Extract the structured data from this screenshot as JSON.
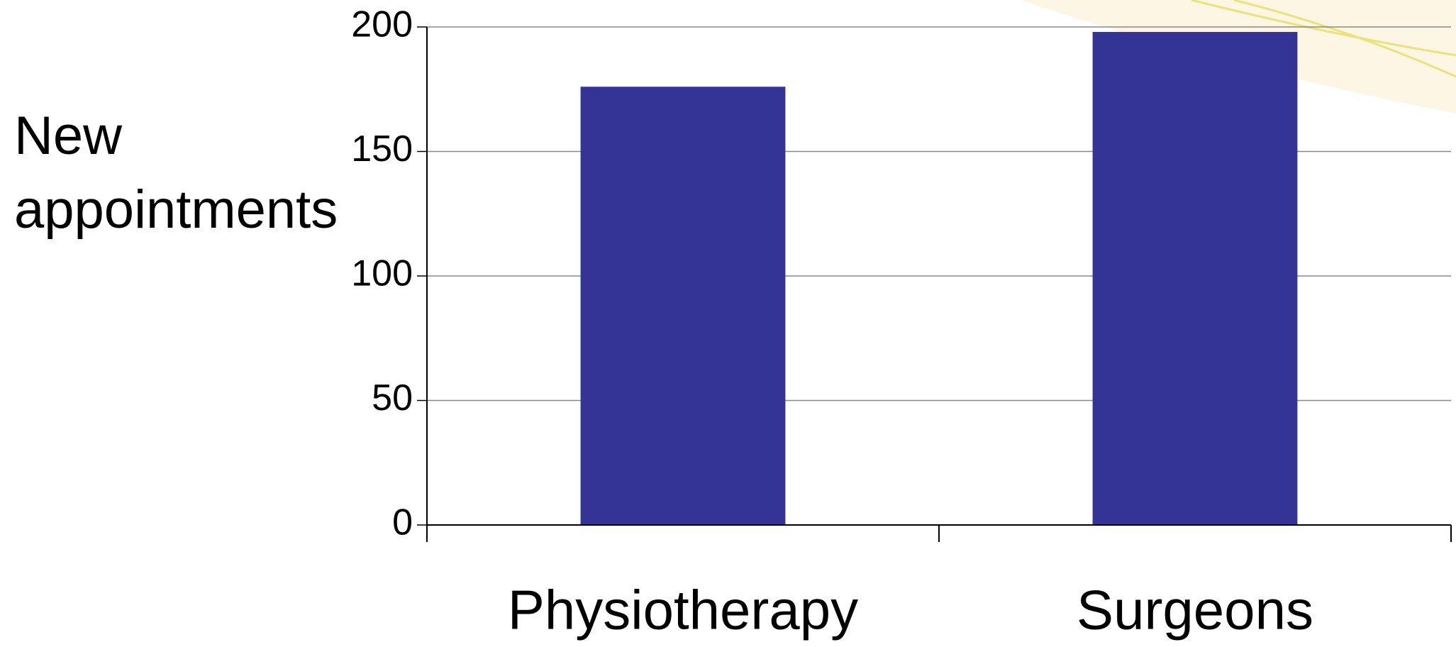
{
  "chart_data": {
    "type": "bar",
    "y_label": "New appointments",
    "categories": [
      "Physiotherapy",
      "Surgeons"
    ],
    "values": [
      176,
      198
    ],
    "color": "#343496",
    "ylim": [
      0,
      200
    ],
    "yticks": [
      0,
      50,
      100,
      150,
      200
    ],
    "grid": true
  }
}
